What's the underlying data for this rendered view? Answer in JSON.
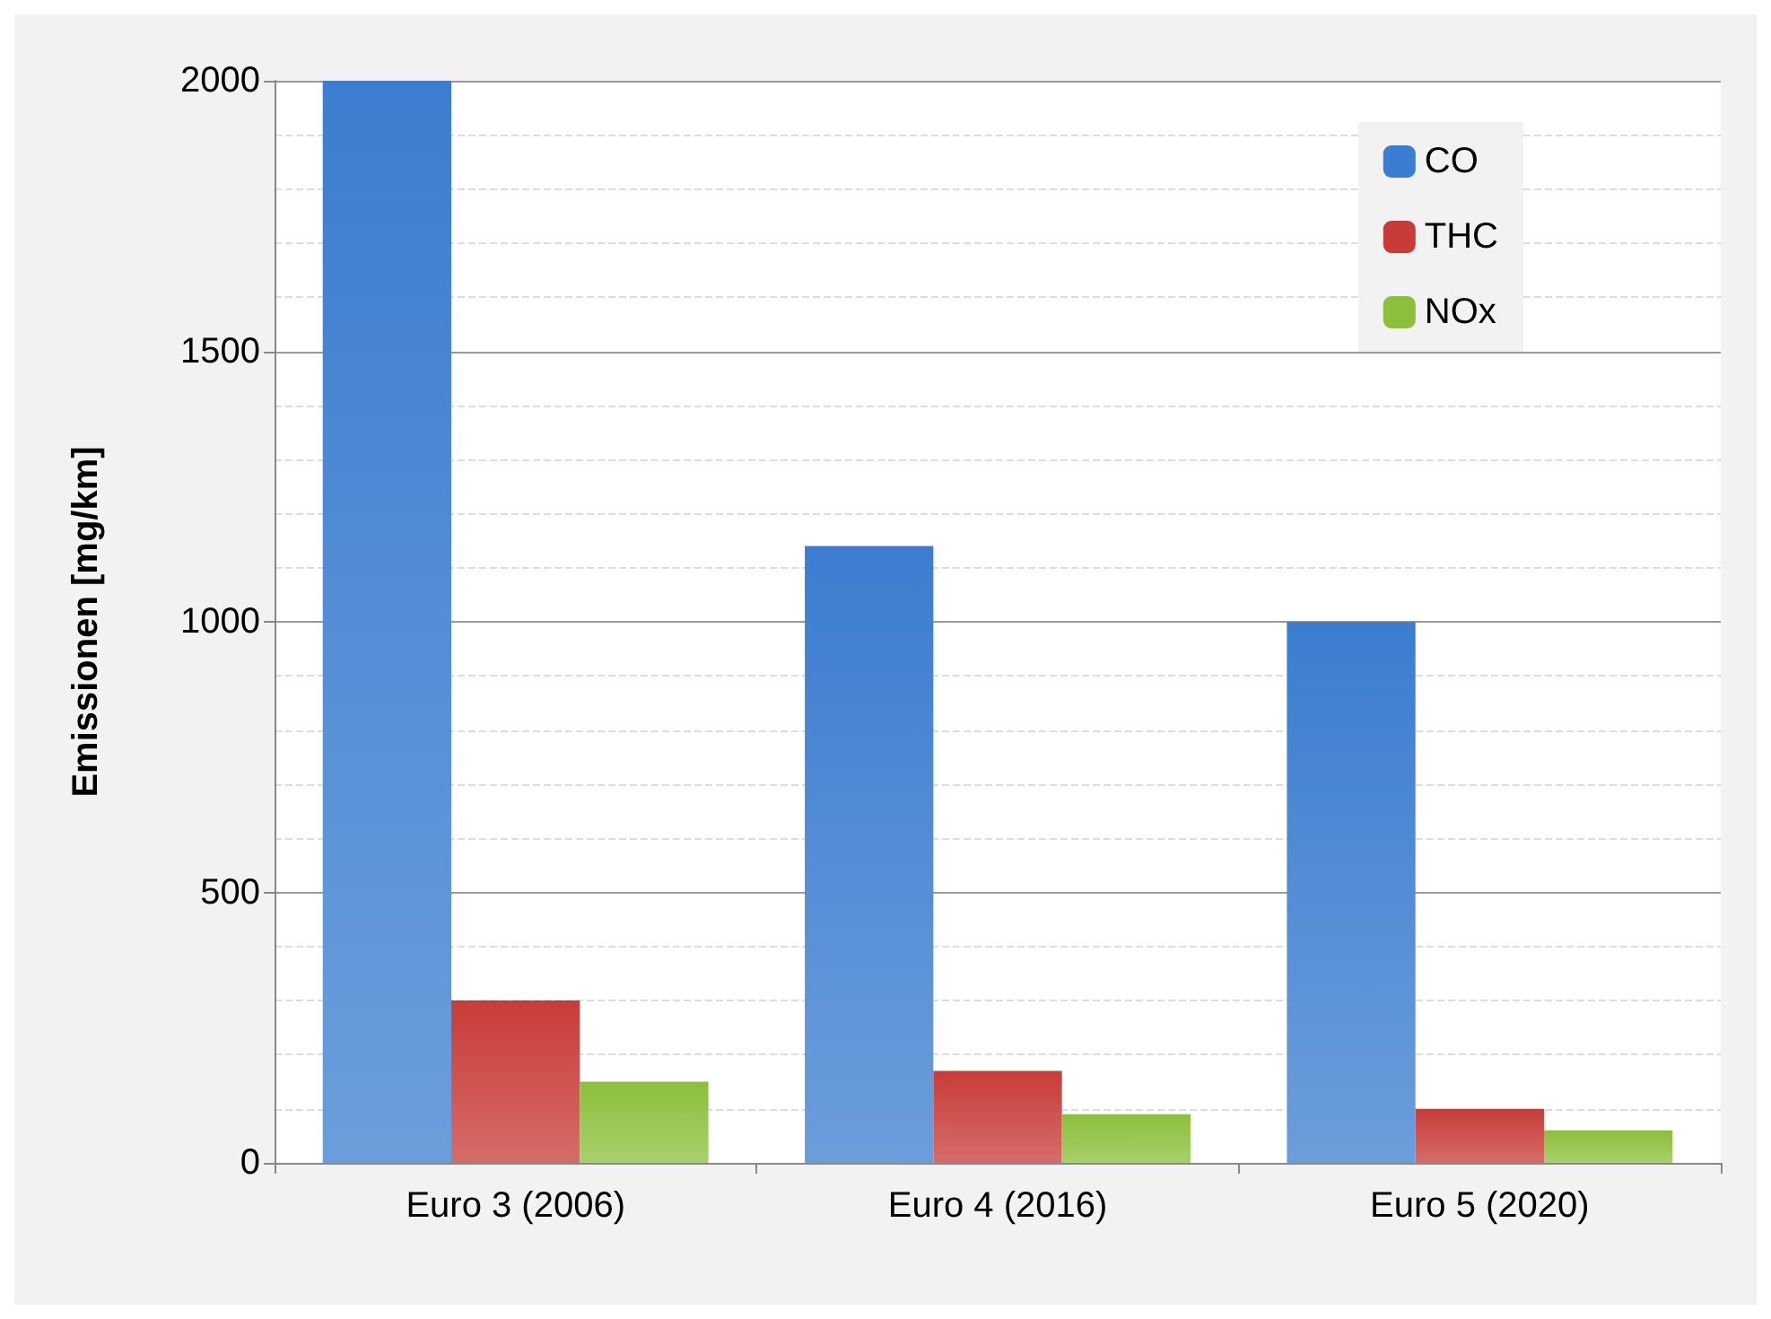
{
  "chart_data": {
    "type": "bar",
    "ylabel": "Emissionen [mg/km]",
    "categories": [
      "Euro 3 (2006)",
      "Euro 4 (2016)",
      "Euro 5 (2020)"
    ],
    "series": [
      {
        "name": "CO",
        "color": "#3b7dd0",
        "values": [
          2000,
          1140,
          1000
        ]
      },
      {
        "name": "THC",
        "color": "#c83c38",
        "values": [
          300,
          170,
          100
        ]
      },
      {
        "name": "NOx",
        "color": "#8cbf3c",
        "values": [
          150,
          90,
          60
        ]
      }
    ],
    "ylim": [
      0,
      2000
    ],
    "yticks": [
      0,
      500,
      1000,
      1500,
      2000
    ],
    "grid": "y",
    "legend": "top right"
  }
}
